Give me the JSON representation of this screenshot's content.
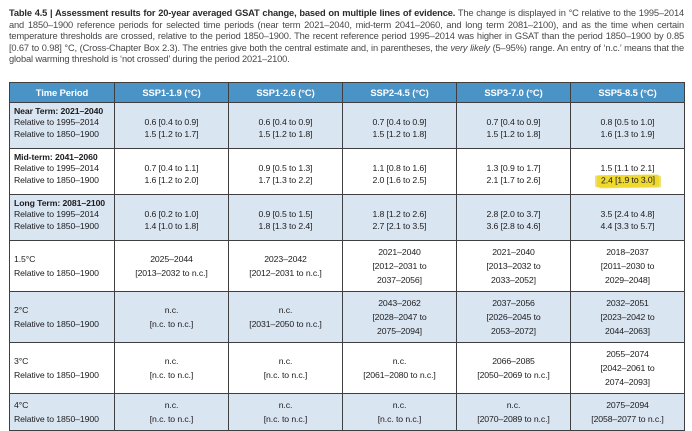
{
  "caption": {
    "bold_lead": "Table 4.5 | Assessment results for 20-year averaged GSAT change, based on multiple lines of evidence.",
    "body_1": " The change is displayed in °C relative to the 1995–2014 and 1850–1900 reference periods for selected time periods (near term 2021–2040, mid-term 2041–2060, and long term 2081–2100), and as the time when certain temperature thresholds are crossed, relative to the period 1850–1900. The recent reference period 1995–2014 was higher in GSAT than the period 1850–1900 by 0.85 [0.67 to 0.98] °C, (Cross-Chapter Box 2.3). The entries give both the central estimate and, in parentheses, the ",
    "italic_term": "very likely",
    "body_2": " (5–95%) range. An entry of ‘n.c.’ means that the global warming threshold is ‘not crossed’ during the period 2021–2100."
  },
  "table": {
    "columns": [
      "Time Period",
      "SSP1-1.9 (°C)",
      "SSP1-2.6 (°C)",
      "SSP2-4.5 (°C)",
      "SSP3-7.0 (°C)",
      "SSP5-8.5 (°C)"
    ],
    "groups": [
      {
        "type": "period",
        "bg": "blue",
        "title": "Near Term: 2021–2040",
        "rows": [
          {
            "label": "Relative to 1995–2014",
            "values": [
              "0.6 [0.4 to 0.9]",
              "0.6 [0.4 to 0.9]",
              "0.7 [0.4 to 0.9]",
              "0.7 [0.4 to 0.9]",
              "0.8 [0.5 to 1.0]"
            ]
          },
          {
            "label": "Relative to 1850–1900",
            "values": [
              "1.5 [1.2 to 1.7]",
              "1.5 [1.2 to 1.8]",
              "1.5 [1.2 to 1.8]",
              "1.5 [1.2 to 1.8]",
              "1.6 [1.3 to 1.9]"
            ]
          }
        ]
      },
      {
        "type": "period",
        "bg": "white",
        "title": "Mid-term: 2041–2060",
        "rows": [
          {
            "label": "Relative to 1995–2014",
            "values": [
              "0.7 [0.4 to 1.1]",
              "0.9 [0.5 to 1.3]",
              "1.1 [0.8 to 1.6]",
              "1.3 [0.9 to 1.7]",
              "1.5 [1.1 to 2.1]"
            ]
          },
          {
            "label": "Relative to 1850–1900",
            "values": [
              "1.6 [1.2 to 2.0]",
              "1.7 [1.3 to 2.2]",
              "2.0 [1.6 to 2.5]",
              "2.1 [1.7 to 2.6]",
              "2.4 [1.9 to 3.0]"
            ],
            "highlight_col": 4
          }
        ]
      },
      {
        "type": "period",
        "bg": "blue",
        "title": "Long Term: 2081–2100",
        "rows": [
          {
            "label": "Relative to 1995–2014",
            "values": [
              "0.6 [0.2 to 1.0]",
              "0.9 [0.5 to 1.5]",
              "1.8 [1.2 to 2.6]",
              "2.8 [2.0 to 3.7]",
              "3.5 [2.4 to 4.8]"
            ]
          },
          {
            "label": "Relative to 1850–1900",
            "values": [
              "1.4 [1.0 to 1.8]",
              "1.8 [1.3 to 2.4]",
              "2.7 [2.1 to 3.5]",
              "3.6 [2.8 to 4.6]",
              "4.4 [3.3 to 5.7]"
            ]
          }
        ]
      },
      {
        "type": "threshold",
        "bg": "white",
        "label_lines": [
          "1.5°C",
          "Relative to 1850–1900"
        ],
        "cells": [
          [
            "2025–2044",
            "[2013–2032 to n.c.]"
          ],
          [
            "2023–2042",
            "[2012–2031 to n.c.]"
          ],
          [
            "2021–2040",
            "[2012–2031 to",
            "2037–2056]"
          ],
          [
            "2021–2040",
            "[2013–2032 to",
            "2033–2052]"
          ],
          [
            "2018–2037",
            "[2011–2030 to",
            "2029–2048]"
          ]
        ]
      },
      {
        "type": "threshold",
        "bg": "blue",
        "label_lines": [
          "2°C",
          "Relative to 1850–1900"
        ],
        "cells": [
          [
            "n.c.",
            "[n.c. to n.c.]"
          ],
          [
            "n.c.",
            "[2031–2050 to n.c.]"
          ],
          [
            "2043–2062",
            "[2028–2047 to",
            "2075–2094]"
          ],
          [
            "2037–2056",
            "[2026–2045 to",
            "2053–2072]"
          ],
          [
            "2032–2051",
            "[2023–2042 to",
            "2044–2063]"
          ]
        ]
      },
      {
        "type": "threshold",
        "bg": "white",
        "label_lines": [
          "3°C",
          "Relative to 1850–1900"
        ],
        "cells": [
          [
            "n.c.",
            "[n.c. to n.c.]"
          ],
          [
            "n.c.",
            "[n.c. to n.c.]"
          ],
          [
            "n.c.",
            "[2061–2080 to n.c.]"
          ],
          [
            "2066–2085",
            "[2050–2069 to n.c.]"
          ],
          [
            "2055–2074",
            "[2042–2061 to",
            "2074–2093]"
          ]
        ]
      },
      {
        "type": "threshold",
        "bg": "blue",
        "label_lines": [
          "4°C",
          "Relative to 1850–1900"
        ],
        "cells": [
          [
            "n.c.",
            "[n.c. to n.c.]"
          ],
          [
            "n.c.",
            "[n.c. to n.c.]"
          ],
          [
            "n.c.",
            "[n.c. to n.c.]"
          ],
          [
            "n.c.",
            "[2070–2089 to n.c.]"
          ],
          [
            "2075–2094",
            "[2058–2077 to n.c.]"
          ]
        ]
      }
    ]
  },
  "colors": {
    "header_bg": "#4A93C7",
    "header_text": "#FFFFFF",
    "row_blue": "#D9E5F1",
    "row_white": "#FFFFFF",
    "border": "#3F3F41",
    "highlight": "#EFD92F",
    "body_text": "#1C1C1E",
    "caption_text": "#47474A",
    "caption_bold_text": "#2B2B2D"
  }
}
